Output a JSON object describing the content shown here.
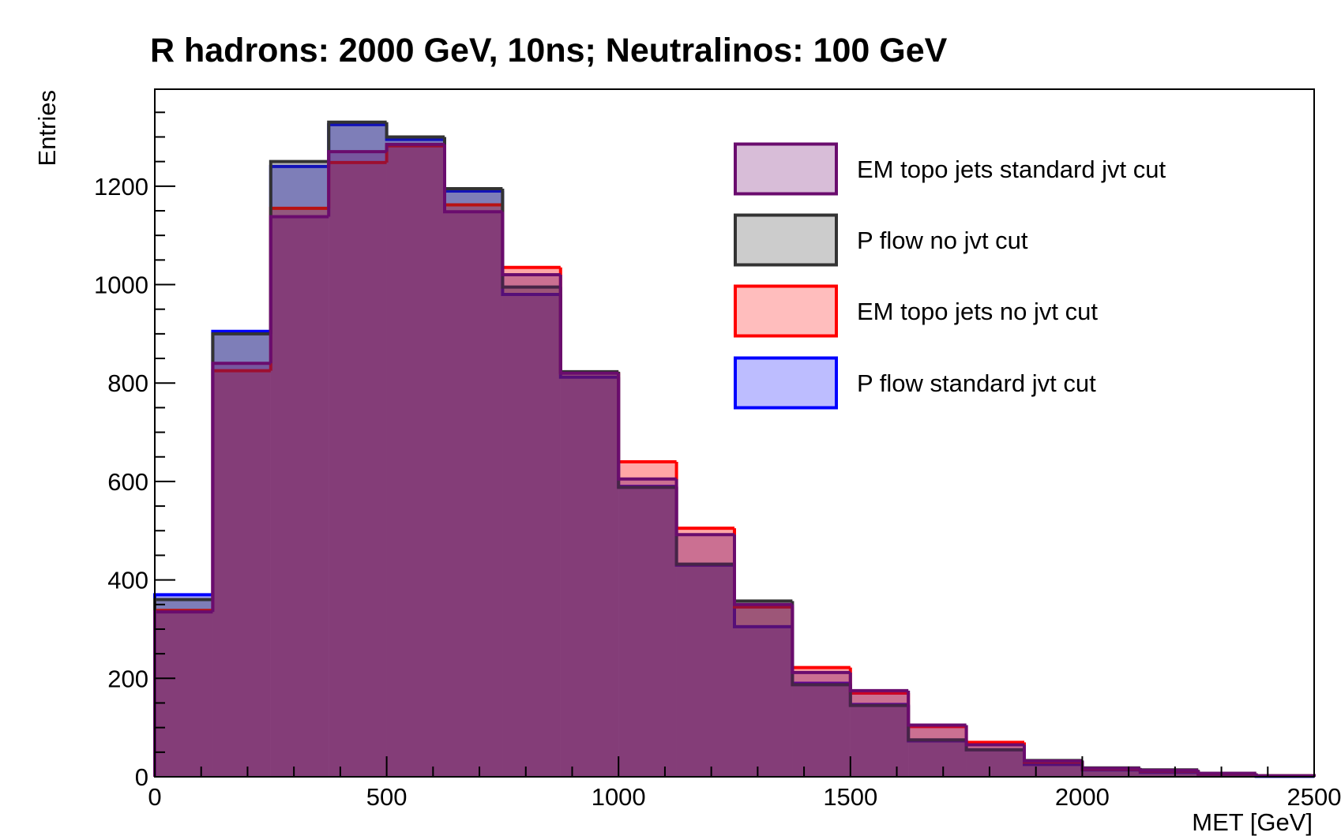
{
  "chart_data": {
    "type": "histogram",
    "title": "R hadrons: 2000 GeV, 10ns; Neutralinos: 100 GeV",
    "xlabel": "MET [GeV]",
    "ylabel": "Entries",
    "bins": [
      0,
      125,
      250,
      375,
      500,
      625,
      750,
      875,
      1000,
      1125,
      1250,
      1375,
      1500,
      1625,
      1750,
      1875,
      2000,
      2125,
      2250,
      2375,
      2500
    ],
    "series": [
      {
        "name": "EM topo jets standard jvt cut",
        "color": "#6a0c6e",
        "fill": "#d8bdd8",
        "values": [
          335,
          840,
          1138,
          1270,
          1285,
          1148,
          1020,
          820,
          605,
          492,
          350,
          212,
          175,
          105,
          65,
          32,
          17,
          13,
          7,
          2
        ]
      },
      {
        "name": "P flow no jvt cut",
        "color": "#333333",
        "fill": "#cccccc",
        "values": [
          360,
          900,
          1250,
          1330,
          1300,
          1195,
          995,
          823,
          588,
          432,
          357,
          187,
          145,
          75,
          55,
          33,
          18,
          14,
          7,
          2
        ]
      },
      {
        "name": "EM topo jets no jvt cut",
        "color": "#ff0000",
        "fill": "#ffbdbd",
        "values": [
          338,
          825,
          1155,
          1248,
          1282,
          1162,
          1035,
          822,
          640,
          505,
          345,
          222,
          170,
          102,
          70,
          30,
          16,
          12,
          6,
          2
        ]
      },
      {
        "name": "P flow standard jvt cut",
        "color": "#0000ff",
        "fill": "#bdbdff",
        "values": [
          370,
          905,
          1240,
          1325,
          1295,
          1190,
          980,
          812,
          590,
          430,
          305,
          190,
          147,
          73,
          55,
          25,
          14,
          9,
          5,
          1
        ]
      }
    ],
    "xlim": [
      0,
      2500
    ],
    "xticks": [
      0,
      500,
      1000,
      1500,
      2000,
      2500
    ],
    "ylim": [
      0,
      1397
    ],
    "yticks": [
      0,
      200,
      400,
      600,
      800,
      1000,
      1200
    ]
  }
}
